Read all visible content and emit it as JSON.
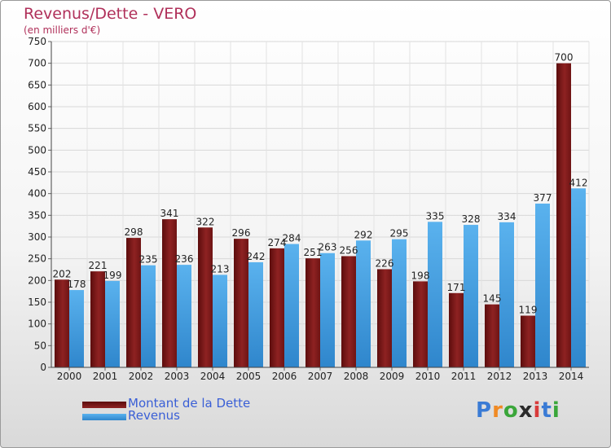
{
  "header": {
    "title": "Revenus/Dette - VERO",
    "subtitle": "(en milliers d'€)"
  },
  "chart_data": {
    "type": "bar",
    "title": "Revenus/Dette - VERO",
    "ylabel": "(en milliers d'€)",
    "xlabel": "",
    "ylim": [
      0,
      750
    ],
    "yticks": [
      0,
      50,
      100,
      150,
      200,
      250,
      300,
      350,
      400,
      450,
      500,
      550,
      600,
      650,
      700,
      750
    ],
    "grid": true,
    "legend_position": "bottom-left",
    "categories": [
      "2000",
      "2001",
      "2002",
      "2003",
      "2004",
      "2005",
      "2006",
      "2007",
      "2008",
      "2009",
      "2010",
      "2011",
      "2012",
      "2013",
      "2014"
    ],
    "series": [
      {
        "name": "Montant de la Dette",
        "color": "#8b1a1a",
        "values": [
          202,
          221,
          298,
          341,
          322,
          296,
          274,
          251,
          256,
          226,
          198,
          171,
          145,
          119,
          700
        ],
        "labels": [
          "202",
          "221",
          "298",
          "341",
          "322",
          "296",
          "274",
          "251",
          "256",
          "226",
          "198",
          "171",
          "145",
          "119",
          "700"
        ]
      },
      {
        "name": "Revenus",
        "color": "#4aa3e6",
        "values": [
          178,
          199,
          235,
          236,
          213,
          242,
          284,
          263,
          292,
          295,
          335,
          328,
          334,
          377,
          412
        ],
        "labels": [
          "178",
          "199",
          "235",
          "236",
          "213",
          "242",
          "284",
          "263",
          "292",
          "295",
          "335",
          "328",
          "334",
          "377",
          "412"
        ]
      }
    ]
  },
  "legend": {
    "items": [
      {
        "label": "Montant de la Dette",
        "color": "#8b1a1a"
      },
      {
        "label": "Revenus",
        "color": "#4aa3e6"
      }
    ]
  },
  "logo": {
    "letters": [
      "P",
      "r",
      "o",
      "x",
      "i",
      "t",
      "i"
    ],
    "colors": [
      "#3a7bd5",
      "#f08a24",
      "#3aa63a",
      "#2a2a2a",
      "#d83a3a",
      "#3a7bd5",
      "#3aa63a"
    ]
  }
}
